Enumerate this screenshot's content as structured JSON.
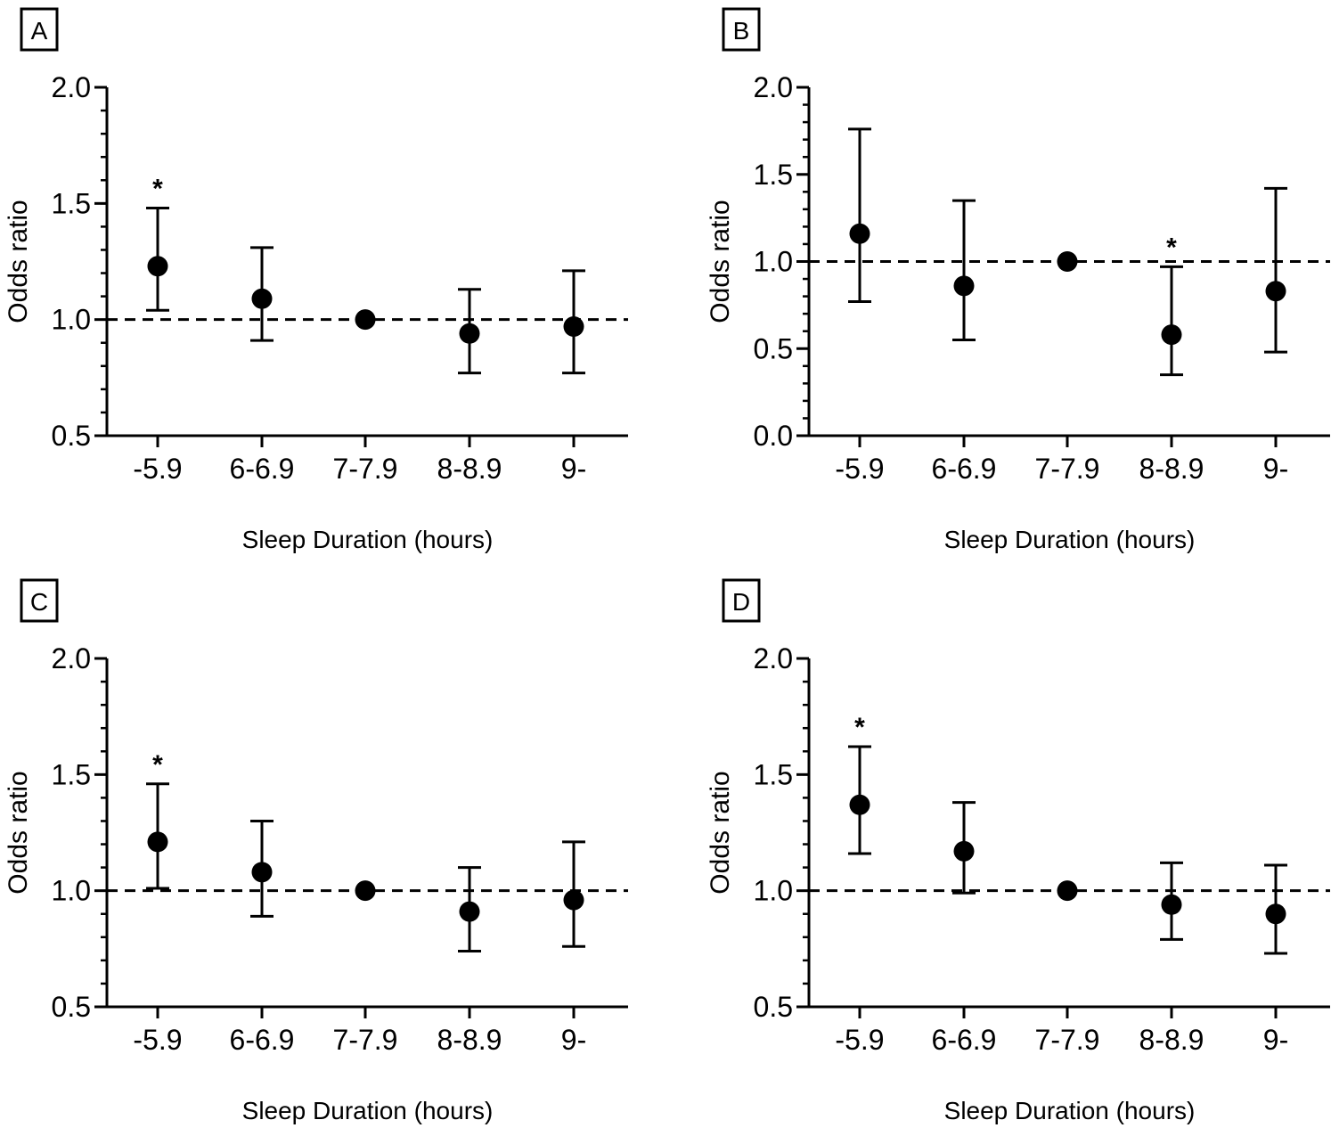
{
  "chart_data": [
    {
      "type": "scatter",
      "panel_label": "A",
      "title": "",
      "ylabel": "Odds ratio",
      "xlabel": "Sleep Duration (hours)",
      "categories": [
        "-5.9",
        "6-6.9",
        "7-7.9",
        "8-8.9",
        "9-"
      ],
      "ylim": [
        0.5,
        2.0
      ],
      "yticks": [
        "0.5",
        "1.0",
        "1.5",
        "2.0"
      ],
      "reference_line": 1.0,
      "values": [
        1.23,
        1.09,
        1.0,
        0.94,
        0.97
      ],
      "lower": [
        1.04,
        0.91,
        null,
        0.77,
        0.77
      ],
      "upper": [
        1.48,
        1.31,
        null,
        1.13,
        1.21
      ],
      "significant": [
        true,
        false,
        false,
        false,
        false
      ],
      "significance_marker": "*"
    },
    {
      "type": "scatter",
      "panel_label": "B",
      "title": "",
      "ylabel": "Odds ratio",
      "xlabel": "Sleep Duration (hours)",
      "categories": [
        "-5.9",
        "6-6.9",
        "7-7.9",
        "8-8.9",
        "9-"
      ],
      "ylim": [
        0.0,
        2.0
      ],
      "yticks": [
        "0.0",
        "0.5",
        "1.0",
        "1.5",
        "2.0"
      ],
      "reference_line": 1.0,
      "values": [
        1.16,
        0.86,
        1.0,
        0.58,
        0.83
      ],
      "lower": [
        0.77,
        0.55,
        null,
        0.35,
        0.48
      ],
      "upper": [
        1.76,
        1.35,
        null,
        0.97,
        1.42
      ],
      "significant": [
        false,
        false,
        false,
        true,
        false
      ],
      "significance_marker": "*"
    },
    {
      "type": "scatter",
      "panel_label": "C",
      "title": "",
      "ylabel": "Odds ratio",
      "xlabel": "Sleep Duration (hours)",
      "categories": [
        "-5.9",
        "6-6.9",
        "7-7.9",
        "8-8.9",
        "9-"
      ],
      "ylim": [
        0.5,
        2.0
      ],
      "yticks": [
        "0.5",
        "1.0",
        "1.5",
        "2.0"
      ],
      "reference_line": 1.0,
      "values": [
        1.21,
        1.08,
        1.0,
        0.91,
        0.96
      ],
      "lower": [
        1.01,
        0.89,
        null,
        0.74,
        0.76
      ],
      "upper": [
        1.46,
        1.3,
        null,
        1.1,
        1.21
      ],
      "significant": [
        true,
        false,
        false,
        false,
        false
      ],
      "significance_marker": "*"
    },
    {
      "type": "scatter",
      "panel_label": "D",
      "title": "",
      "ylabel": "Odds ratio",
      "xlabel": "Sleep Duration (hours)",
      "categories": [
        "-5.9",
        "6-6.9",
        "7-7.9",
        "8-8.9",
        "9-"
      ],
      "ylim": [
        0.5,
        2.0
      ],
      "yticks": [
        "0.5",
        "1.0",
        "1.5",
        "2.0"
      ],
      "reference_line": 1.0,
      "values": [
        1.37,
        1.17,
        1.0,
        0.94,
        0.9
      ],
      "lower": [
        1.16,
        0.99,
        null,
        0.79,
        0.73
      ],
      "upper": [
        1.62,
        1.38,
        null,
        1.12,
        1.11
      ],
      "significant": [
        true,
        false,
        false,
        false,
        false
      ],
      "significance_marker": "*"
    }
  ]
}
